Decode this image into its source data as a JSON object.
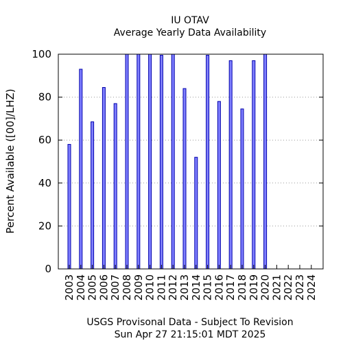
{
  "chart_data": {
    "type": "bar",
    "title": "IU OTAV",
    "subtitle": "Average Yearly Data Availability",
    "ylabel": "Percent Available ([00]/LHZ)",
    "xlabel": "",
    "footer_line1": "USGS Provisonal Data - Subject To Revision",
    "footer_line2": "Sun Apr 27 21:15:01 MDT 2025",
    "categories": [
      "2003",
      "2004",
      "2005",
      "2006",
      "2007",
      "2008",
      "2009",
      "2010",
      "2011",
      "2012",
      "2013",
      "2014",
      "2015",
      "2016",
      "2017",
      "2018",
      "2019",
      "2020",
      "2021",
      "2022",
      "2023",
      "2024"
    ],
    "values": [
      58,
      93,
      68.5,
      84.5,
      77,
      100,
      100,
      100,
      99.5,
      100,
      84,
      52,
      99.5,
      78,
      97,
      74.5,
      97,
      100,
      null,
      null,
      null,
      null
    ],
    "ylim": [
      0,
      100
    ],
    "yticks": [
      0,
      20,
      40,
      60,
      80,
      100
    ],
    "grid": true,
    "bar_fill": "#7f7fff",
    "bar_stroke": "#0000aa"
  }
}
